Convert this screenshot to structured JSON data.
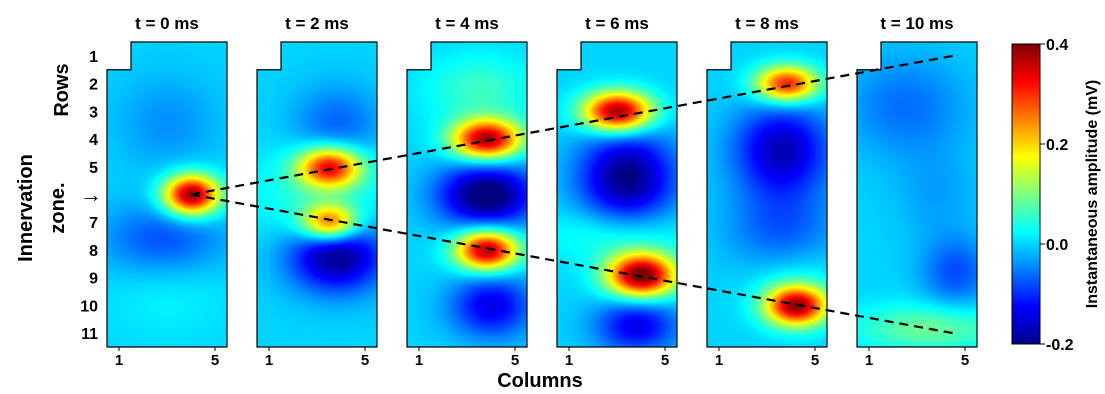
{
  "figure": {
    "rows_label": "Rows",
    "iz_label_line1": "Innervation",
    "iz_label_line2": "zone.",
    "columns_label": "Columns",
    "colorbar_label": "Instantaneous amplitude (mV)",
    "arrow_glyph": "→"
  },
  "chart_data": {
    "type": "heatmap",
    "panel_titles": [
      "t = 0 ms",
      "t = 2 ms",
      "t = 4 ms",
      "t = 6 ms",
      "t = 8 ms",
      "t = 10 ms"
    ],
    "time_ms": [
      0,
      2,
      4,
      6,
      8,
      10
    ],
    "grid": {
      "rows": 11,
      "columns": 5
    },
    "row_ticks": [
      "1",
      "2",
      "3",
      "4",
      "5",
      "6",
      "7",
      "8",
      "9",
      "10",
      "11"
    ],
    "arrow_row": 6,
    "column_ticks": [
      "1",
      "5"
    ],
    "column_tick_values": [
      1,
      5
    ],
    "colorbar": {
      "min": -0.2,
      "max": 0.4,
      "ticks": [
        "0.4",
        "0.2",
        "0.0",
        "-0.2"
      ],
      "tick_values": [
        0.4,
        0.2,
        0.0,
        -0.2
      ],
      "colormap": "jet"
    },
    "missing_cells": [
      {
        "row": 1,
        "column": 1
      }
    ],
    "background_mV": 0.0,
    "blobs": [
      [
        {
          "row": 6,
          "col": 4.0,
          "amp": 0.4,
          "wr": 0.5,
          "wc": 0.8
        },
        {
          "row": 7.6,
          "col": 2.8,
          "amp": -0.08,
          "wr": 0.9,
          "wc": 1.8
        },
        {
          "row": 3.4,
          "col": 3.0,
          "amp": -0.04,
          "wr": 1.2,
          "wc": 1.5
        },
        {
          "row": 9.6,
          "col": 3.0,
          "amp": 0.02,
          "wr": 1.2,
          "wc": 1.8
        }
      ],
      [
        {
          "row": 5.0,
          "col": 3.5,
          "amp": 0.32,
          "wr": 0.5,
          "wc": 0.9
        },
        {
          "row": 7.0,
          "col": 3.5,
          "amp": 0.28,
          "wr": 0.45,
          "wc": 0.8
        },
        {
          "row": 8.2,
          "col": 3.8,
          "amp": -0.2,
          "wr": 0.9,
          "wc": 1.4
        },
        {
          "row": 3.5,
          "col": 3.8,
          "amp": -0.07,
          "wr": 1.0,
          "wc": 1.3
        },
        {
          "row": 6.0,
          "col": 3.0,
          "amp": 0.05,
          "wr": 1.2,
          "wc": 2.0
        }
      ],
      [
        {
          "row": 4.0,
          "col": 3.8,
          "amp": 0.38,
          "wr": 0.5,
          "wc": 1.0
        },
        {
          "row": 8.0,
          "col": 3.8,
          "amp": 0.38,
          "wr": 0.5,
          "wc": 0.9
        },
        {
          "row": 6.0,
          "col": 3.8,
          "amp": -0.22,
          "wr": 0.8,
          "wc": 1.4
        },
        {
          "row": 10.0,
          "col": 4.0,
          "amp": -0.14,
          "wr": 0.8,
          "wc": 1.2
        },
        {
          "row": 2.2,
          "col": 3.5,
          "amp": 0.06,
          "wr": 0.9,
          "wc": 1.6
        }
      ],
      [
        {
          "row": 3.0,
          "col": 3.0,
          "amp": 0.4,
          "wr": 0.5,
          "wc": 1.0
        },
        {
          "row": 8.9,
          "col": 4.0,
          "amp": 0.42,
          "wr": 0.55,
          "wc": 1.0
        },
        {
          "row": 5.4,
          "col": 3.4,
          "amp": -0.2,
          "wr": 1.2,
          "wc": 1.4
        },
        {
          "row": 10.7,
          "col": 3.8,
          "amp": -0.14,
          "wr": 0.7,
          "wc": 1.2
        },
        {
          "row": 7.4,
          "col": 3.0,
          "amp": 0.06,
          "wr": 0.7,
          "wc": 2.0
        }
      ],
      [
        {
          "row": 2.0,
          "col": 3.8,
          "amp": 0.32,
          "wr": 0.45,
          "wc": 0.9
        },
        {
          "row": 10.0,
          "col": 4.2,
          "amp": 0.38,
          "wr": 0.5,
          "wc": 0.9
        },
        {
          "row": 4.3,
          "col": 3.6,
          "amp": -0.16,
          "wr": 1.1,
          "wc": 1.4
        },
        {
          "row": 7.3,
          "col": 3.6,
          "amp": -0.08,
          "wr": 1.4,
          "wc": 1.6
        },
        {
          "row": 9.0,
          "col": 4.0,
          "amp": 0.05,
          "wr": 0.9,
          "wc": 1.5
        }
      ],
      [
        {
          "row": 2.8,
          "col": 2.5,
          "amp": -0.06,
          "wr": 1.3,
          "wc": 1.8
        },
        {
          "row": 8.8,
          "col": 4.6,
          "amp": -0.08,
          "wr": 0.9,
          "wc": 1.0
        },
        {
          "row": 10.8,
          "col": 3.5,
          "amp": 0.09,
          "wr": 0.6,
          "wc": 2.2
        },
        {
          "row": 6.0,
          "col": 3.8,
          "amp": -0.03,
          "wr": 1.2,
          "wc": 1.2
        }
      ]
    ],
    "propagation_lines": [
      {
        "from": {
          "panel": 1,
          "row": 6,
          "column": 4.0
        },
        "to": {
          "panel": 6,
          "row": 1,
          "column": 4.5
        },
        "style": "dashed"
      },
      {
        "from": {
          "panel": 1,
          "row": 6,
          "column": 4.0
        },
        "to": {
          "panel": 6,
          "row": 11,
          "column": 4.5
        },
        "style": "dashed"
      }
    ]
  }
}
